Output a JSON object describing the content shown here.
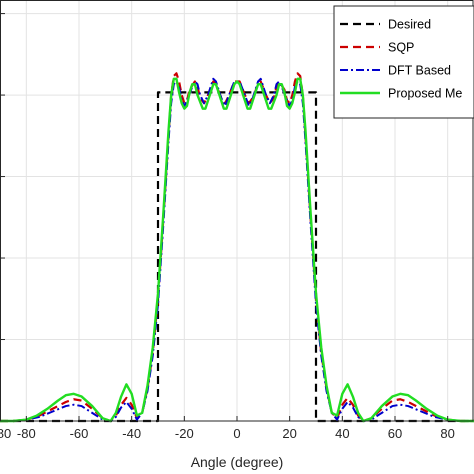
{
  "chart_data": {
    "type": "line",
    "title": "",
    "xlabel": "Angle (degree)",
    "ylabel": "",
    "xlim": [
      -90,
      90
    ],
    "ylim": [
      0,
      1.55
    ],
    "xticks": [
      -80,
      -60,
      -40,
      -20,
      0,
      20,
      40,
      60,
      80
    ],
    "xtick_labels": [
      "-80",
      "-60",
      "-40",
      "-20",
      "0",
      "20",
      "40",
      "60",
      "80"
    ],
    "grid": true,
    "legend_position": "top-right",
    "series": [
      {
        "name": "Desired",
        "color": "#000000",
        "style": "dashed",
        "points": [
          [
            -90,
            0
          ],
          [
            -30,
            0
          ],
          [
            -30,
            1.21
          ],
          [
            30,
            1.21
          ],
          [
            30,
            0
          ],
          [
            90,
            0
          ]
        ]
      },
      {
        "name": "SQP",
        "color": "#cc0000",
        "style": "dashed",
        "points": [
          [
            -90,
            0
          ],
          [
            -85,
            0
          ],
          [
            -80,
            0.005
          ],
          [
            -75,
            0.02
          ],
          [
            -70,
            0.045
          ],
          [
            -65,
            0.07
          ],
          [
            -62,
            0.08
          ],
          [
            -59,
            0.075
          ],
          [
            -55,
            0.045
          ],
          [
            -51,
            0.01
          ],
          [
            -48,
            0
          ],
          [
            -46,
            0.02
          ],
          [
            -44,
            0.06
          ],
          [
            -42,
            0.085
          ],
          [
            -40,
            0.06
          ],
          [
            -38,
            0.01
          ],
          [
            -36,
            0.03
          ],
          [
            -34,
            0.12
          ],
          [
            -32,
            0.25
          ],
          [
            -30,
            0.45
          ],
          [
            -28,
            0.74
          ],
          [
            -26,
            1.05
          ],
          [
            -25,
            1.2
          ],
          [
            -24,
            1.27
          ],
          [
            -23,
            1.28
          ],
          [
            -22,
            1.25
          ],
          [
            -21,
            1.2
          ],
          [
            -20,
            1.17
          ],
          [
            -19,
            1.18
          ],
          [
            -18,
            1.22
          ],
          [
            -16,
            1.25
          ],
          [
            -15,
            1.23
          ],
          [
            -14,
            1.19
          ],
          [
            -12.5,
            1.17
          ],
          [
            -11,
            1.2
          ],
          [
            -9,
            1.25
          ],
          [
            -8,
            1.24
          ],
          [
            -6,
            1.19
          ],
          [
            -4.5,
            1.17
          ],
          [
            -3,
            1.2
          ],
          [
            -1,
            1.25
          ],
          [
            0,
            1.25
          ],
          [
            1,
            1.25
          ],
          [
            3,
            1.2
          ],
          [
            4.5,
            1.17
          ],
          [
            6,
            1.19
          ],
          [
            8,
            1.24
          ],
          [
            9,
            1.25
          ],
          [
            11,
            1.2
          ],
          [
            12.5,
            1.17
          ],
          [
            14,
            1.19
          ],
          [
            15,
            1.23
          ],
          [
            16,
            1.25
          ],
          [
            18,
            1.22
          ],
          [
            19,
            1.18
          ],
          [
            20,
            1.17
          ],
          [
            21,
            1.2
          ],
          [
            22,
            1.25
          ],
          [
            23,
            1.28
          ],
          [
            24,
            1.27
          ],
          [
            25,
            1.2
          ],
          [
            26,
            1.05
          ],
          [
            28,
            0.74
          ],
          [
            30,
            0.45
          ],
          [
            32,
            0.25
          ],
          [
            34,
            0.12
          ],
          [
            36,
            0.03
          ],
          [
            38,
            0.01
          ],
          [
            40,
            0.06
          ],
          [
            42,
            0.085
          ],
          [
            44,
            0.06
          ],
          [
            46,
            0.02
          ],
          [
            48,
            0
          ],
          [
            51,
            0.01
          ],
          [
            55,
            0.045
          ],
          [
            59,
            0.075
          ],
          [
            62,
            0.08
          ],
          [
            65,
            0.07
          ],
          [
            70,
            0.045
          ],
          [
            75,
            0.02
          ],
          [
            80,
            0.005
          ],
          [
            85,
            0
          ],
          [
            90,
            0
          ]
        ]
      },
      {
        "name": "DFT Based",
        "color": "#0000cc",
        "style": "dashdot",
        "points": [
          [
            -90,
            0
          ],
          [
            -85,
            0
          ],
          [
            -80,
            0.005
          ],
          [
            -75,
            0.015
          ],
          [
            -70,
            0.035
          ],
          [
            -65,
            0.055
          ],
          [
            -62,
            0.06
          ],
          [
            -59,
            0.055
          ],
          [
            -55,
            0.03
          ],
          [
            -51,
            0.005
          ],
          [
            -48,
            0
          ],
          [
            -46,
            0.015
          ],
          [
            -44,
            0.05
          ],
          [
            -42,
            0.07
          ],
          [
            -40,
            0.045
          ],
          [
            -38,
            0.005
          ],
          [
            -36,
            0.03
          ],
          [
            -34,
            0.11
          ],
          [
            -32,
            0.24
          ],
          [
            -30,
            0.43
          ],
          [
            -28,
            0.72
          ],
          [
            -26,
            1.03
          ],
          [
            -25,
            1.17
          ],
          [
            -24,
            1.24
          ],
          [
            -23,
            1.25
          ],
          [
            -22,
            1.23
          ],
          [
            -21,
            1.18
          ],
          [
            -20,
            1.16
          ],
          [
            -19,
            1.18
          ],
          [
            -17,
            1.23
          ],
          [
            -16,
            1.25
          ],
          [
            -15,
            1.24
          ],
          [
            -14,
            1.2
          ],
          [
            -12.5,
            1.17
          ],
          [
            -11,
            1.2
          ],
          [
            -9,
            1.26
          ],
          [
            -8,
            1.25
          ],
          [
            -6,
            1.19
          ],
          [
            -4.5,
            1.16
          ],
          [
            -3,
            1.2
          ],
          [
            -1,
            1.25
          ],
          [
            0,
            1.25
          ],
          [
            1,
            1.25
          ],
          [
            3,
            1.2
          ],
          [
            4.5,
            1.16
          ],
          [
            6,
            1.19
          ],
          [
            8,
            1.25
          ],
          [
            9,
            1.26
          ],
          [
            11,
            1.2
          ],
          [
            12.5,
            1.17
          ],
          [
            14,
            1.2
          ],
          [
            15,
            1.24
          ],
          [
            16,
            1.25
          ],
          [
            17,
            1.23
          ],
          [
            19,
            1.18
          ],
          [
            20,
            1.16
          ],
          [
            21,
            1.18
          ],
          [
            22,
            1.23
          ],
          [
            23,
            1.25
          ],
          [
            24,
            1.24
          ],
          [
            25,
            1.17
          ],
          [
            26,
            1.03
          ],
          [
            28,
            0.72
          ],
          [
            30,
            0.43
          ],
          [
            32,
            0.24
          ],
          [
            34,
            0.11
          ],
          [
            36,
            0.03
          ],
          [
            38,
            0.005
          ],
          [
            40,
            0.045
          ],
          [
            42,
            0.07
          ],
          [
            44,
            0.05
          ],
          [
            46,
            0.015
          ],
          [
            48,
            0
          ],
          [
            51,
            0.005
          ],
          [
            55,
            0.03
          ],
          [
            59,
            0.055
          ],
          [
            62,
            0.06
          ],
          [
            65,
            0.055
          ],
          [
            70,
            0.035
          ],
          [
            75,
            0.015
          ],
          [
            80,
            0.005
          ],
          [
            85,
            0
          ],
          [
            90,
            0
          ]
        ]
      },
      {
        "name": "Proposed Me",
        "color": "#22dd22",
        "style": "solid",
        "points": [
          [
            -90,
            0
          ],
          [
            -85,
            0
          ],
          [
            -80,
            0.005
          ],
          [
            -76,
            0.02
          ],
          [
            -72,
            0.045
          ],
          [
            -68,
            0.075
          ],
          [
            -65,
            0.095
          ],
          [
            -62,
            0.1
          ],
          [
            -59,
            0.09
          ],
          [
            -55,
            0.055
          ],
          [
            -51,
            0.01
          ],
          [
            -48,
            0
          ],
          [
            -46,
            0.03
          ],
          [
            -44,
            0.09
          ],
          [
            -42,
            0.135
          ],
          [
            -40,
            0.1
          ],
          [
            -38,
            0.02
          ],
          [
            -36,
            0.03
          ],
          [
            -34,
            0.13
          ],
          [
            -32,
            0.27
          ],
          [
            -30,
            0.47
          ],
          [
            -28,
            0.76
          ],
          [
            -26,
            1.07
          ],
          [
            -25,
            1.2
          ],
          [
            -24,
            1.26
          ],
          [
            -23,
            1.26
          ],
          [
            -22,
            1.21
          ],
          [
            -21,
            1.17
          ],
          [
            -20,
            1.15
          ],
          [
            -19,
            1.16
          ],
          [
            -18,
            1.21
          ],
          [
            -17,
            1.24
          ],
          [
            -16,
            1.24
          ],
          [
            -15,
            1.2
          ],
          [
            -13,
            1.15
          ],
          [
            -12,
            1.15
          ],
          [
            -11,
            1.18
          ],
          [
            -9,
            1.24
          ],
          [
            -8,
            1.24
          ],
          [
            -7,
            1.21
          ],
          [
            -5,
            1.15
          ],
          [
            -4,
            1.15
          ],
          [
            -3,
            1.18
          ],
          [
            -1,
            1.24
          ],
          [
            0,
            1.25
          ],
          [
            1,
            1.24
          ],
          [
            3,
            1.18
          ],
          [
            4,
            1.15
          ],
          [
            5,
            1.15
          ],
          [
            7,
            1.21
          ],
          [
            8,
            1.24
          ],
          [
            9,
            1.24
          ],
          [
            11,
            1.18
          ],
          [
            12,
            1.15
          ],
          [
            13,
            1.15
          ],
          [
            15,
            1.2
          ],
          [
            16,
            1.24
          ],
          [
            17,
            1.24
          ],
          [
            18,
            1.21
          ],
          [
            19,
            1.16
          ],
          [
            20,
            1.15
          ],
          [
            21,
            1.17
          ],
          [
            22,
            1.21
          ],
          [
            23,
            1.26
          ],
          [
            24,
            1.26
          ],
          [
            25,
            1.2
          ],
          [
            26,
            1.07
          ],
          [
            28,
            0.76
          ],
          [
            30,
            0.47
          ],
          [
            32,
            0.27
          ],
          [
            34,
            0.13
          ],
          [
            36,
            0.03
          ],
          [
            38,
            0.02
          ],
          [
            40,
            0.1
          ],
          [
            42,
            0.135
          ],
          [
            44,
            0.09
          ],
          [
            46,
            0.03
          ],
          [
            48,
            0
          ],
          [
            51,
            0.01
          ],
          [
            55,
            0.055
          ],
          [
            59,
            0.09
          ],
          [
            62,
            0.1
          ],
          [
            65,
            0.095
          ],
          [
            68,
            0.075
          ],
          [
            72,
            0.045
          ],
          [
            76,
            0.02
          ],
          [
            80,
            0.005
          ],
          [
            85,
            0
          ],
          [
            90,
            0
          ]
        ]
      }
    ]
  },
  "legend": {
    "entries": [
      "Desired",
      "SQP",
      "DFT Based",
      "Proposed Me"
    ]
  },
  "xaxis": {
    "label": "Angle (degree)",
    "first_visible_label": "80"
  }
}
